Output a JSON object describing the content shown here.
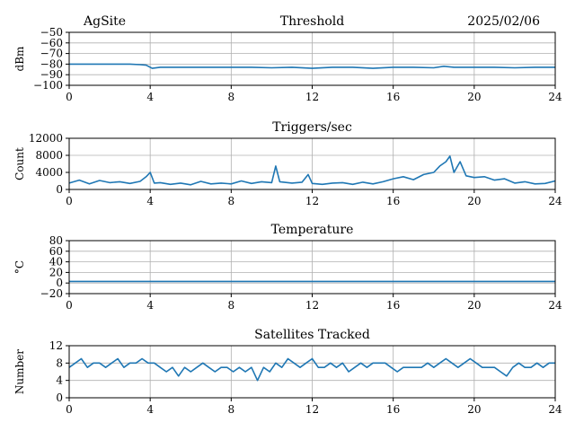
{
  "header": {
    "site": "AgSite",
    "date": "2025/02/06"
  },
  "colors": {
    "line": "#1f77b4",
    "grid": "#b0b0b0",
    "axis": "#000000"
  },
  "chart_data": [
    {
      "type": "line",
      "title": "Threshold",
      "ylabel": "dBm",
      "xlim": [
        0,
        24
      ],
      "ylim": [
        -100,
        -50
      ],
      "xticks": [
        0,
        4,
        8,
        12,
        16,
        20,
        24
      ],
      "yticks": [
        -100,
        -90,
        -80,
        -70,
        -60,
        -50
      ],
      "ytick_labels": [
        "−100",
        "−90",
        "−80",
        "−70",
        "−60",
        "−50"
      ],
      "grid": true,
      "series": [
        {
          "x": [
            0,
            0.5,
            1,
            1.5,
            2,
            2.5,
            3,
            3.5,
            3.8,
            4.0,
            4.1,
            4.5,
            5,
            6,
            7,
            8,
            9,
            10,
            11,
            12,
            13,
            14,
            15,
            16,
            17,
            18,
            18.5,
            19,
            20,
            21,
            22,
            23,
            24
          ],
          "y": [
            -80,
            -80,
            -80,
            -80,
            -80,
            -80,
            -80,
            -80.5,
            -81,
            -83,
            -84,
            -83,
            -83,
            -83,
            -83,
            -83,
            -83,
            -83.5,
            -83,
            -84,
            -83,
            -83,
            -84,
            -83,
            -83,
            -83.5,
            -82,
            -83,
            -83,
            -83,
            -83.5,
            -83,
            -83
          ]
        }
      ]
    },
    {
      "type": "line",
      "title": "Triggers/sec",
      "ylabel": "Count",
      "xlim": [
        0,
        24
      ],
      "ylim": [
        0,
        12000
      ],
      "xticks": [
        0,
        4,
        8,
        12,
        16,
        20,
        24
      ],
      "yticks": [
        0,
        4000,
        8000,
        12000
      ],
      "ytick_labels": [
        "0",
        "4000",
        "8000",
        "12000"
      ],
      "grid": true,
      "series": [
        {
          "x": [
            0,
            0.5,
            1,
            1.5,
            2,
            2.5,
            3,
            3.5,
            3.8,
            4,
            4.2,
            4.5,
            5,
            5.5,
            6,
            6.5,
            7,
            7.5,
            8,
            8.5,
            9,
            9.5,
            10,
            10.2,
            10.4,
            11,
            11.5,
            11.8,
            12,
            12.5,
            13,
            13.5,
            14,
            14.5,
            15,
            15.5,
            16,
            16.5,
            17,
            17.5,
            18,
            18.3,
            18.6,
            18.8,
            19,
            19.3,
            19.6,
            20,
            20.5,
            21,
            21.5,
            22,
            22.5,
            23,
            23.5,
            24
          ],
          "y": [
            1500,
            2200,
            1300,
            2100,
            1600,
            1800,
            1400,
            1900,
            3000,
            4000,
            1500,
            1600,
            1200,
            1500,
            1100,
            1900,
            1300,
            1500,
            1300,
            2000,
            1400,
            1800,
            1600,
            5500,
            1800,
            1500,
            1700,
            3500,
            1400,
            1200,
            1500,
            1600,
            1200,
            1700,
            1300,
            1800,
            2500,
            3000,
            2300,
            3500,
            4000,
            5500,
            6500,
            7800,
            4000,
            6500,
            3200,
            2800,
            3000,
            2200,
            2500,
            1500,
            1800,
            1300,
            1400,
            2000
          ]
        }
      ]
    },
    {
      "type": "line",
      "title": "Temperature",
      "ylabel": "°C",
      "xlim": [
        0,
        24
      ],
      "ylim": [
        -20,
        80
      ],
      "xticks": [
        0,
        4,
        8,
        12,
        16,
        20,
        24
      ],
      "yticks": [
        -20,
        0,
        20,
        40,
        60,
        80
      ],
      "ytick_labels": [
        "−20",
        "0",
        "20",
        "40",
        "60",
        "80"
      ],
      "grid": true,
      "series": [
        {
          "x": [
            0,
            24
          ],
          "y": [
            3,
            3
          ]
        }
      ]
    },
    {
      "type": "line",
      "title": "Satellites Tracked",
      "ylabel": "Number",
      "xlim": [
        0,
        24
      ],
      "ylim": [
        0,
        12
      ],
      "xticks": [
        0,
        4,
        8,
        12,
        16,
        20,
        24
      ],
      "yticks": [
        0,
        4,
        8,
        12
      ],
      "ytick_labels": [
        "0",
        "4",
        "8",
        "12"
      ],
      "grid": true,
      "series": [
        {
          "x": [
            0,
            0.3,
            0.6,
            0.9,
            1.2,
            1.5,
            1.8,
            2.1,
            2.4,
            2.7,
            3.0,
            3.3,
            3.6,
            3.9,
            4.2,
            4.5,
            4.8,
            5.1,
            5.4,
            5.7,
            6.0,
            6.3,
            6.6,
            6.9,
            7.2,
            7.5,
            7.8,
            8.1,
            8.4,
            8.7,
            9.0,
            9.3,
            9.6,
            9.9,
            10.2,
            10.5,
            10.8,
            11.1,
            11.4,
            11.7,
            12.0,
            12.3,
            12.6,
            12.9,
            13.2,
            13.5,
            13.8,
            14.1,
            14.4,
            14.7,
            15.0,
            15.3,
            15.6,
            15.9,
            16.2,
            16.5,
            16.8,
            17.1,
            17.4,
            17.7,
            18.0,
            18.3,
            18.6,
            18.9,
            19.2,
            19.5,
            19.8,
            20.1,
            20.4,
            20.7,
            21.0,
            21.3,
            21.6,
            21.9,
            22.2,
            22.5,
            22.8,
            23.1,
            23.4,
            23.7,
            24.0
          ],
          "y": [
            7,
            8,
            9,
            7,
            8,
            8,
            7,
            8,
            9,
            7,
            8,
            8,
            9,
            8,
            8,
            7,
            6,
            7,
            5,
            7,
            6,
            7,
            8,
            7,
            6,
            7,
            7,
            6,
            7,
            6,
            7,
            4,
            7,
            6,
            8,
            7,
            9,
            8,
            7,
            8,
            9,
            7,
            7,
            8,
            7,
            8,
            6,
            7,
            8,
            7,
            8,
            8,
            8,
            7,
            6,
            7,
            7,
            7,
            7,
            8,
            7,
            8,
            9,
            8,
            7,
            8,
            9,
            8,
            7,
            7,
            7,
            6,
            5,
            7,
            8,
            7,
            7,
            8,
            7,
            8,
            8
          ]
        }
      ]
    }
  ]
}
